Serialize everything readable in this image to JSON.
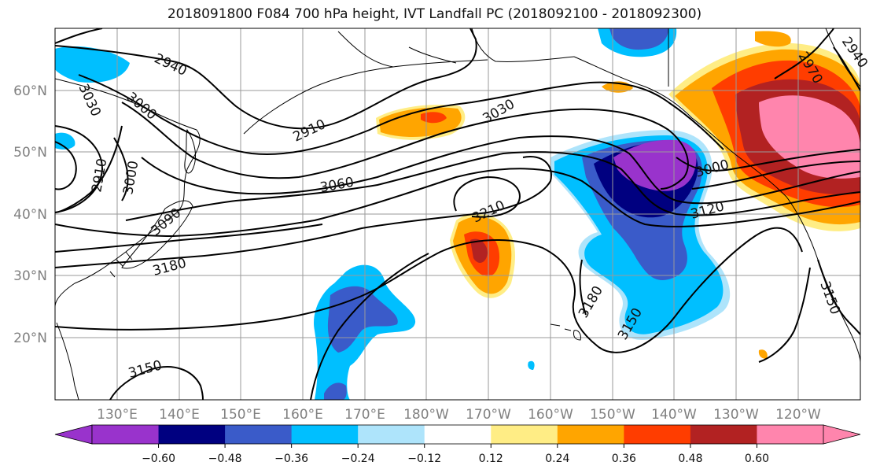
{
  "title": "2018091800 F084 700 hPa height, IVT Landfall PC (2018092100 - 2018092300)",
  "map": {
    "lon_labels": [
      "130°E",
      "140°E",
      "150°E",
      "160°E",
      "170°E",
      "180°W",
      "170°W",
      "160°W",
      "150°W",
      "140°W",
      "130°W",
      "120°W"
    ],
    "lat_labels": [
      "60°N",
      "50°N",
      "40°N",
      "30°N",
      "20°N"
    ],
    "contour_labels": [
      "2940",
      "3030",
      "3000",
      "2910",
      "2910",
      "3000",
      "3060",
      "3090",
      "3180",
      "3210",
      "3030",
      "3120",
      "3000",
      "2970",
      "2940",
      "3180",
      "3150",
      "3150",
      "3150"
    ]
  },
  "colorbar": {
    "colors": [
      "#9933cc",
      "#000080",
      "#3a5bc9",
      "#00bfff",
      "#aee4fb",
      "#ffffff",
      "#ffed85",
      "#ffa500",
      "#ff3d00",
      "#b22222",
      "#ff85ad"
    ],
    "labels": [
      "−0.60",
      "−0.48",
      "−0.36",
      "−0.24",
      "−0.12",
      "0.12",
      "0.24",
      "0.36",
      "0.48",
      "0.60"
    ]
  }
}
